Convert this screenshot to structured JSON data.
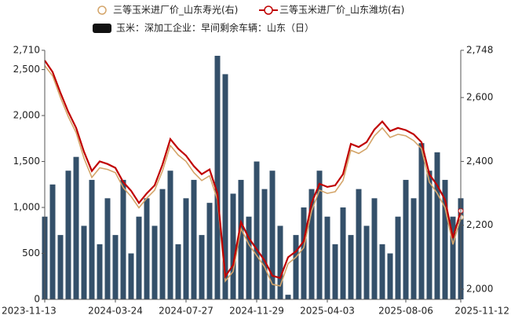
{
  "chart_data": {
    "type": "combo",
    "categories": [
      "2023-11-13",
      null,
      null,
      null,
      null,
      null,
      null,
      null,
      null,
      "2024-03-24",
      null,
      null,
      null,
      null,
      null,
      null,
      null,
      null,
      "2024-07-27",
      null,
      null,
      null,
      null,
      null,
      null,
      null,
      null,
      "2024-11-29",
      null,
      null,
      null,
      null,
      null,
      null,
      null,
      null,
      "2025-04-03",
      null,
      null,
      null,
      null,
      null,
      null,
      null,
      null,
      null,
      "2025-08-06",
      null,
      null,
      null,
      null,
      null,
      null,
      "2025-11-12"
    ],
    "ylim": [
      0,
      2710
    ],
    "yticks": [
      0,
      500,
      {
        "value": 1000,
        "label": "1,000"
      },
      {
        "value": 1500,
        "label": "1,500"
      },
      {
        "value": 2000,
        "label": "2,000"
      },
      {
        "value": 2500,
        "label": "2,500"
      },
      {
        "value": 2710,
        "label": "2,710"
      }
    ],
    "y2lim": [
      1968,
      2748
    ],
    "y2ticks": [
      {
        "value": 2000,
        "label": "2,000"
      },
      {
        "value": 2200,
        "label": "2,200"
      },
      {
        "value": 2400,
        "label": "2,400"
      },
      {
        "value": 2600,
        "label": "2,600"
      },
      {
        "value": 2748,
        "label": "2,748"
      }
    ],
    "series": [
      {
        "name": "玉米：深加工企业：早间剩余车辆：山东（日）",
        "type": "bar",
        "color": "#34506a",
        "values": [
          900,
          1250,
          700,
          1400,
          1550,
          800,
          1300,
          600,
          1100,
          700,
          1300,
          500,
          900,
          1100,
          800,
          1200,
          1400,
          600,
          1100,
          1300,
          700,
          1050,
          2650,
          2450,
          1150,
          1300,
          900,
          1500,
          1200,
          1400,
          800,
          50,
          700,
          1000,
          1200,
          1400,
          900,
          600,
          1000,
          700,
          1200,
          800,
          1100,
          600,
          500,
          900,
          1300,
          1100,
          1700,
          1400,
          1600,
          1300,
          900,
          1100
        ]
      },
      {
        "name": "三等玉米进厂价_山东寿光(右)",
        "type": "line",
        "axis": "y2",
        "color": "#d4a56a",
        "values": [
          2700,
          2668,
          2600,
          2540,
          2490,
          2410,
          2350,
          2380,
          2375,
          2365,
          2318,
          2290,
          2255,
          2285,
          2310,
          2370,
          2450,
          2420,
          2400,
          2365,
          2340,
          2355,
          2280,
          2025,
          2055,
          2190,
          2140,
          2105,
          2070,
          2015,
          2010,
          2080,
          2100,
          2130,
          2245,
          2310,
          2300,
          2305,
          2340,
          2435,
          2425,
          2440,
          2480,
          2505,
          2475,
          2485,
          2480,
          2465,
          2440,
          2335,
          2300,
          2255,
          2140,
          2225
        ]
      },
      {
        "name": "三等玉米进厂价_山东潍坊(右)",
        "type": "line",
        "axis": "y2",
        "color": "#c00000",
        "values": [
          2716,
          2680,
          2615,
          2555,
          2505,
          2430,
          2370,
          2400,
          2392,
          2380,
          2335,
          2308,
          2270,
          2300,
          2325,
          2390,
          2470,
          2440,
          2418,
          2385,
          2360,
          2375,
          2300,
          2040,
          2075,
          2210,
          2160,
          2125,
          2090,
          2042,
          2035,
          2100,
          2118,
          2150,
          2270,
          2330,
          2320,
          2325,
          2360,
          2455,
          2445,
          2460,
          2500,
          2525,
          2495,
          2505,
          2498,
          2485,
          2460,
          2360,
          2325,
          2280,
          2160,
          2245
        ]
      }
    ]
  }
}
